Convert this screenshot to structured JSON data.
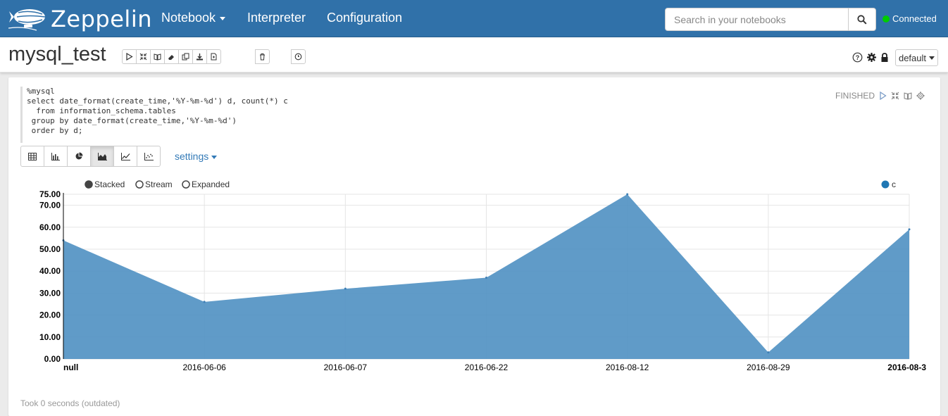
{
  "navbar": {
    "brand": "Zeppelin",
    "links": [
      "Notebook",
      "Interpreter",
      "Configuration"
    ],
    "search_placeholder": "Search in your notebooks",
    "connection_status": "Connected",
    "icons": [
      "zeppelin-logo-icon",
      "search-icon"
    ]
  },
  "note": {
    "title": "mysql_test",
    "toolbar_icons": [
      "play-icon",
      "hide-code-icon",
      "hide-output-icon",
      "eraser-icon",
      "copy-icon",
      "download-icon",
      "new-note-icon"
    ],
    "right_icons": [
      "help-icon",
      "gear-icon",
      "lock-icon"
    ],
    "interpreter_dropdown": "default"
  },
  "paragraph": {
    "code_lines": [
      "%mysql",
      "select date_format(create_time,'%Y-%m-%d') d, count(*) c",
      "  from information_schema.tables",
      " group by date_format(create_time,'%Y-%m-%d')",
      " order by d;"
    ],
    "status": "FINISHED",
    "settings_label": "settings",
    "footer": "Took 0 seconds (outdated)",
    "viz_icons": [
      "table-icon",
      "bar-chart-icon",
      "pie-chart-icon",
      "area-chart-icon",
      "line-chart-icon",
      "scatter-chart-icon"
    ],
    "active_viz": "area-chart-icon",
    "stack_modes": [
      "Stacked",
      "Stream",
      "Expanded"
    ],
    "selected_stack_mode": "Stacked"
  },
  "chart_data": {
    "type": "area",
    "categories": [
      "null",
      "2016-06-06",
      "2016-06-07",
      "2016-06-22",
      "2016-08-12",
      "2016-08-29",
      "2016-08-3"
    ],
    "series": [
      {
        "name": "c",
        "values": [
          54,
          26,
          32,
          37,
          75,
          3,
          59
        ],
        "color": "#4f90c2"
      }
    ],
    "ylim": [
      0,
      75
    ],
    "yticks": [
      "0.00",
      "10.00",
      "20.00",
      "30.00",
      "40.00",
      "50.00",
      "60.00",
      "70.00",
      "75.00"
    ],
    "legend_position": "top-right",
    "grid": true
  },
  "colors": {
    "navbar": "#3071a9",
    "link": "#337ab7",
    "connected": "#00cc00",
    "area": "#4f90c2"
  }
}
